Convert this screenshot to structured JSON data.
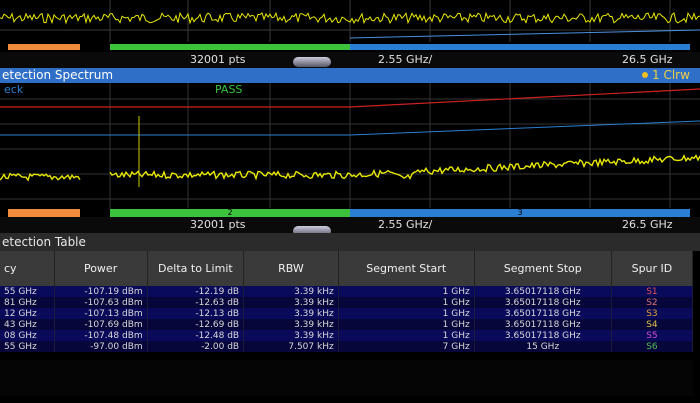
{
  "colors": {
    "trace": "#e8e800",
    "limit": "#cc2222",
    "segment1": "#f08a3c",
    "segment2": "#3cc23c",
    "segment3": "#2a7fd4",
    "titlebar": "#2f6fc7",
    "pass": "#3cc23c"
  },
  "overview": {
    "points": "32001 pts",
    "span": "2.55 GHz/",
    "stop": "26.5 GHz"
  },
  "spectrum": {
    "title": "etection Spectrum",
    "marker": "1 Clrw",
    "check_label": "eck",
    "pass_label": "PASS",
    "points": "32001 pts",
    "span": "2.55 GHz/",
    "stop": "26.5 GHz",
    "segment_labels": [
      "2",
      "3"
    ]
  },
  "table": {
    "title": "etection Table",
    "columns": [
      "cy",
      "Power",
      "Delta to Limit",
      "RBW",
      "Segment Start",
      "Segment Stop",
      "Spur ID"
    ],
    "rows": [
      [
        "55 GHz",
        "-107.19 dBm",
        "-12.19 dB",
        "3.39 kHz",
        "1 GHz",
        "3.65017118 GHz",
        "S1"
      ],
      [
        "81 GHz",
        "-107.63 dBm",
        "-12.63 dB",
        "3.39 kHz",
        "1 GHz",
        "3.65017118 GHz",
        "S2"
      ],
      [
        "12 GHz",
        "-107.13 dBm",
        "-12.13 dB",
        "3.39 kHz",
        "1 GHz",
        "3.65017118 GHz",
        "S3"
      ],
      [
        "43 GHz",
        "-107.69 dBm",
        "-12.69 dB",
        "3.39 kHz",
        "1 GHz",
        "3.65017118 GHz",
        "S4"
      ],
      [
        "08 GHz",
        "-107.48 dBm",
        "-12.48 dB",
        "3.39 kHz",
        "1 GHz",
        "3.65017118 GHz",
        "S5"
      ],
      [
        "55 GHz",
        "-97.00 dBm",
        "-2.00 dB",
        "7.507 kHz",
        "7 GHz",
        "15 GHz",
        "S6"
      ]
    ],
    "spur_colors": [
      "#e05050",
      "#e07070",
      "#e0a030",
      "#e0c040",
      "#d050d0",
      "#50c050"
    ]
  }
}
